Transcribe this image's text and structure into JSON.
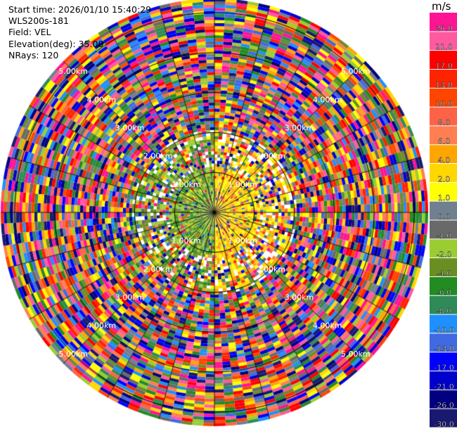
{
  "header": {
    "start_time": "Start time: 2026/01/10 15:40:29",
    "station": "WLS200s-181",
    "field": "Field: VEL",
    "elevation": "Elevation(deg): 35.00",
    "nrays": "NRays: 120"
  },
  "colorbar": {
    "unit": "m/s",
    "ticks": [
      "26.0",
      "21.0",
      "17.0",
      "13.0",
      "10.0",
      "8.0",
      "6.0",
      "4.0",
      "2.0",
      "1.0",
      "0.0",
      "-1.0",
      "-2.0",
      "-4.0",
      "-6.0",
      "-8.0",
      "-10.0",
      "-13.0",
      "-17.0",
      "-21.0",
      "-26.0",
      "-30.0"
    ],
    "colors": [
      "#ff1493",
      "#ff5aa0",
      "#ff0000",
      "#ff2400",
      "#ff4500",
      "#ff6347",
      "#ff7f50",
      "#ffa500",
      "#ffd700",
      "#ffff00",
      "#708090",
      "#696969",
      "#9acd32",
      "#6b8e23",
      "#228b22",
      "#2e8b57",
      "#1e90ff",
      "#4169e1",
      "#0000ff",
      "#0000cd",
      "#000080",
      "#191970"
    ]
  },
  "chart_data": {
    "type": "heatmap",
    "projection": "polar PPI",
    "field": "VEL",
    "units": "m/s",
    "elevation_deg": 35.0,
    "n_rays": 120,
    "value_range": [
      -30.0,
      26.0
    ],
    "range_ring_labels": [
      "1.00km",
      "2.00km",
      "3.00km",
      "4.00km",
      "5.00km"
    ],
    "spokes_every_deg": 15,
    "pattern": "near-range: negative (green) velocities on west side, positive (yellow) on east side; far-range noisy random velocities"
  }
}
